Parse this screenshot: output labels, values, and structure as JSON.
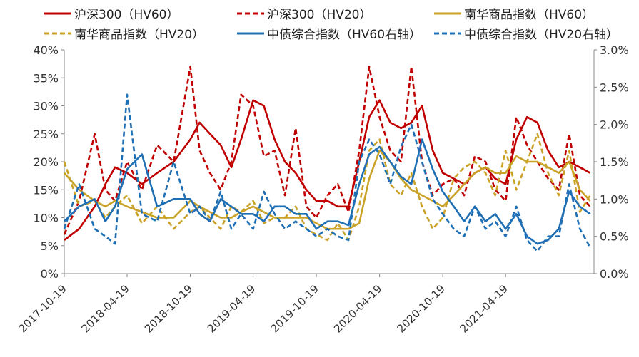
{
  "chart_data": {
    "type": "line",
    "title": "",
    "y_left": {
      "ticks": [
        "0%",
        "5%",
        "10%",
        "15%",
        "20%",
        "25%",
        "30%",
        "35%",
        "40%"
      ],
      "range": [
        0,
        40
      ]
    },
    "y_right": {
      "ticks": [
        "0.0%",
        "0.5%",
        "1.0%",
        "1.5%",
        "2.0%",
        "2.5%",
        "3.0%"
      ],
      "range": [
        0,
        3.0
      ]
    },
    "x_ticks": [
      "2017-10-19",
      "2018-04-19",
      "2018-10-19",
      "2019-04-19",
      "2019-10-19",
      "2020-04-19",
      "2020-10-19",
      "2021-04-19"
    ],
    "x_range": [
      "2017-10-19",
      "2021-12-31"
    ],
    "legend": [
      {
        "label": "沪深300（HV60）",
        "color": "#c00000",
        "dash": false
      },
      {
        "label": "沪深300（HV20）",
        "color": "#c00000",
        "dash": true
      },
      {
        "label": "南华商品指数（HV60）",
        "color": "#c9a227",
        "dash": false
      },
      {
        "label": "南华商品指数（HV20）",
        "color": "#c9a227",
        "dash": true
      },
      {
        "label": "中债综合指数（HV60右轴）",
        "color": "#1f6fb5",
        "dash": false
      },
      {
        "label": "中债综合指数（HV20右轴）",
        "color": "#1f6fb5",
        "dash": true
      }
    ],
    "series": [
      {
        "name": "沪深300（HV60）",
        "axis": "left",
        "color": "#c00000",
        "dash": false,
        "x": [
          "2017-10-19",
          "2017-12-01",
          "2018-01-15",
          "2018-02-15",
          "2018-03-15",
          "2018-04-19",
          "2018-06-01",
          "2018-07-15",
          "2018-09-01",
          "2018-10-19",
          "2018-11-15",
          "2018-12-15",
          "2019-01-15",
          "2019-02-15",
          "2019-03-15",
          "2019-04-19",
          "2019-05-20",
          "2019-06-20",
          "2019-07-20",
          "2019-08-20",
          "2019-09-20",
          "2019-10-19",
          "2019-11-20",
          "2019-12-20",
          "2020-01-20",
          "2020-02-20",
          "2020-03-20",
          "2020-04-19",
          "2020-05-20",
          "2020-06-20",
          "2020-07-20",
          "2020-08-20",
          "2020-09-20",
          "2020-10-19",
          "2020-11-20",
          "2020-12-20",
          "2021-01-20",
          "2021-02-20",
          "2021-03-20",
          "2021-04-19",
          "2021-05-20",
          "2021-06-20",
          "2021-07-20",
          "2021-08-20",
          "2021-09-20",
          "2021-10-20",
          "2021-11-20",
          "2021-12-20"
        ],
        "values": [
          6,
          8,
          12,
          16,
          19,
          18,
          16,
          18,
          20,
          24,
          27,
          25,
          23,
          19,
          24,
          31,
          30,
          24,
          20,
          18,
          15,
          13,
          13,
          12,
          12,
          20,
          28,
          31,
          27,
          26,
          27,
          30,
          22,
          18,
          17,
          16,
          18,
          19,
          17,
          16,
          24,
          28,
          27,
          22,
          19,
          20,
          19,
          18
        ]
      },
      {
        "name": "沪深300（HV20）",
        "axis": "left",
        "color": "#c00000",
        "dash": true,
        "x": [
          "2017-10-19",
          "2017-12-01",
          "2018-01-15",
          "2018-02-15",
          "2018-03-15",
          "2018-04-19",
          "2018-06-01",
          "2018-07-15",
          "2018-09-01",
          "2018-10-19",
          "2018-11-15",
          "2018-12-15",
          "2019-01-15",
          "2019-02-15",
          "2019-03-15",
          "2019-04-19",
          "2019-05-20",
          "2019-06-20",
          "2019-07-20",
          "2019-08-20",
          "2019-09-20",
          "2019-10-19",
          "2019-11-20",
          "2019-12-20",
          "2020-01-20",
          "2020-02-20",
          "2020-03-20",
          "2020-04-19",
          "2020-05-20",
          "2020-06-20",
          "2020-07-20",
          "2020-08-20",
          "2020-09-20",
          "2020-10-19",
          "2020-11-20",
          "2020-12-20",
          "2021-01-20",
          "2021-02-20",
          "2021-03-20",
          "2021-04-19",
          "2021-05-20",
          "2021-06-20",
          "2021-07-20",
          "2021-08-20",
          "2021-09-20",
          "2021-10-20",
          "2021-11-20",
          "2021-12-20"
        ],
        "values": [
          7,
          13,
          25,
          15,
          13,
          20,
          15,
          23,
          20,
          37,
          22,
          18,
          15,
          20,
          32,
          30,
          21,
          22,
          14,
          26,
          12,
          10,
          14,
          16,
          11,
          22,
          37,
          28,
          22,
          20,
          37,
          20,
          14,
          16,
          17,
          14,
          21,
          20,
          15,
          13,
          28,
          23,
          20,
          17,
          15,
          25,
          14,
          12
        ]
      },
      {
        "name": "南华商品指数（HV60）",
        "axis": "left",
        "color": "#c9a227",
        "dash": false,
        "x": [
          "2017-10-19",
          "2017-12-01",
          "2018-01-15",
          "2018-02-15",
          "2018-03-15",
          "2018-04-19",
          "2018-06-01",
          "2018-07-15",
          "2018-09-01",
          "2018-10-19",
          "2018-11-15",
          "2018-12-15",
          "2019-01-15",
          "2019-02-15",
          "2019-03-15",
          "2019-04-19",
          "2019-05-20",
          "2019-06-20",
          "2019-07-20",
          "2019-08-20",
          "2019-09-20",
          "2019-10-19",
          "2019-11-20",
          "2019-12-20",
          "2020-01-20",
          "2020-02-20",
          "2020-03-20",
          "2020-04-19",
          "2020-05-20",
          "2020-06-20",
          "2020-07-20",
          "2020-08-20",
          "2020-09-20",
          "2020-10-19",
          "2020-11-20",
          "2020-12-20",
          "2021-01-20",
          "2021-02-20",
          "2021-03-20",
          "2021-04-19",
          "2021-05-20",
          "2021-06-20",
          "2021-07-20",
          "2021-08-20",
          "2021-09-20",
          "2021-10-20",
          "2021-11-20",
          "2021-12-20"
        ],
        "values": [
          18,
          15,
          13,
          12,
          13,
          12,
          11,
          10,
          10,
          13,
          12,
          11,
          10,
          10,
          11,
          12,
          11,
          10,
          10,
          10,
          10,
          9,
          8,
          8,
          8,
          9,
          17,
          22,
          20,
          17,
          15,
          14,
          13,
          12,
          14,
          16,
          18,
          19,
          18,
          18,
          21,
          20,
          20,
          19,
          18,
          20,
          15,
          13
        ]
      },
      {
        "name": "南华商品指数（HV20）",
        "axis": "left",
        "color": "#c9a227",
        "dash": true,
        "x": [
          "2017-10-19",
          "2017-12-01",
          "2018-01-15",
          "2018-02-15",
          "2018-03-15",
          "2018-04-19",
          "2018-06-01",
          "2018-07-15",
          "2018-09-01",
          "2018-10-19",
          "2018-11-15",
          "2018-12-15",
          "2019-01-15",
          "2019-02-15",
          "2019-03-15",
          "2019-04-19",
          "2019-05-20",
          "2019-06-20",
          "2019-07-20",
          "2019-08-20",
          "2019-09-20",
          "2019-10-19",
          "2019-11-20",
          "2019-12-20",
          "2020-01-20",
          "2020-02-20",
          "2020-03-20",
          "2020-04-19",
          "2020-05-20",
          "2020-06-20",
          "2020-07-20",
          "2020-08-20",
          "2020-09-20",
          "2020-10-19",
          "2020-11-20",
          "2020-12-20",
          "2021-01-20",
          "2021-02-20",
          "2021-03-20",
          "2021-04-19",
          "2021-05-20",
          "2021-06-20",
          "2021-07-20",
          "2021-08-20",
          "2021-09-20",
          "2021-10-20",
          "2021-11-20",
          "2021-12-20"
        ],
        "values": [
          20,
          12,
          13,
          10,
          12,
          14,
          9,
          12,
          8,
          11,
          12,
          10,
          8,
          12,
          11,
          13,
          9,
          10,
          10,
          12,
          8,
          7,
          6,
          9,
          6,
          12,
          22,
          24,
          16,
          14,
          18,
          12,
          8,
          10,
          17,
          19,
          20,
          18,
          14,
          22,
          15,
          20,
          25,
          18,
          14,
          22,
          11,
          14
        ]
      },
      {
        "name": "中债综合指数（HV60右轴）",
        "axis": "right",
        "color": "#1f6fb5",
        "dash": false,
        "x": [
          "2017-10-19",
          "2017-12-01",
          "2018-01-15",
          "2018-02-15",
          "2018-03-15",
          "2018-04-19",
          "2018-06-01",
          "2018-07-15",
          "2018-09-01",
          "2018-10-19",
          "2018-11-15",
          "2018-12-15",
          "2019-01-15",
          "2019-02-15",
          "2019-03-15",
          "2019-04-19",
          "2019-05-20",
          "2019-06-20",
          "2019-07-20",
          "2019-08-20",
          "2019-09-20",
          "2019-10-19",
          "2019-11-20",
          "2019-12-20",
          "2020-01-20",
          "2020-02-20",
          "2020-03-20",
          "2020-04-19",
          "2020-05-20",
          "2020-06-20",
          "2020-07-20",
          "2020-08-20",
          "2020-09-20",
          "2020-10-19",
          "2020-11-20",
          "2020-12-20",
          "2021-01-20",
          "2021-02-20",
          "2021-03-20",
          "2021-04-19",
          "2021-05-20",
          "2021-06-20",
          "2021-07-20",
          "2021-08-20",
          "2021-09-20",
          "2021-10-20",
          "2021-11-20",
          "2021-12-20"
        ],
        "values": [
          0.7,
          0.9,
          1.0,
          0.7,
          0.9,
          1.4,
          1.6,
          0.9,
          1.0,
          1.0,
          0.8,
          0.7,
          1.0,
          0.9,
          0.8,
          0.8,
          0.7,
          0.9,
          0.9,
          0.8,
          0.8,
          0.6,
          0.7,
          0.7,
          0.65,
          1.2,
          1.6,
          1.7,
          1.5,
          1.3,
          1.2,
          1.8,
          1.4,
          1.1,
          0.9,
          0.7,
          0.9,
          0.7,
          0.8,
          0.6,
          0.8,
          0.5,
          0.4,
          0.45,
          0.6,
          1.1,
          0.9,
          0.8
        ]
      },
      {
        "name": "中债综合指数（HV20右轴）",
        "axis": "right",
        "color": "#1f6fb5",
        "dash": true,
        "x": [
          "2017-10-19",
          "2017-12-01",
          "2018-01-15",
          "2018-02-15",
          "2018-03-15",
          "2018-04-19",
          "2018-06-01",
          "2018-07-15",
          "2018-09-01",
          "2018-10-19",
          "2018-11-15",
          "2018-12-15",
          "2019-01-15",
          "2019-02-15",
          "2019-03-15",
          "2019-04-19",
          "2019-05-20",
          "2019-06-20",
          "2019-07-20",
          "2019-08-20",
          "2019-09-20",
          "2019-10-19",
          "2019-11-20",
          "2019-12-20",
          "2020-01-20",
          "2020-02-20",
          "2020-03-20",
          "2020-04-19",
          "2020-05-20",
          "2020-06-20",
          "2020-07-20",
          "2020-08-20",
          "2020-09-20",
          "2020-10-19",
          "2020-11-20",
          "2020-12-20",
          "2021-01-20",
          "2021-02-20",
          "2021-03-20",
          "2021-04-19",
          "2021-05-20",
          "2021-06-20",
          "2021-07-20",
          "2021-08-20",
          "2021-09-20",
          "2021-10-20",
          "2021-11-20",
          "2021-12-20"
        ],
        "values": [
          0.6,
          1.2,
          0.6,
          0.5,
          0.4,
          2.4,
          0.8,
          0.7,
          1.5,
          0.8,
          0.9,
          0.7,
          1.1,
          0.6,
          0.8,
          0.6,
          1.1,
          0.8,
          0.6,
          0.7,
          0.6,
          0.5,
          0.6,
          0.5,
          0.45,
          1.5,
          1.8,
          1.6,
          1.2,
          1.7,
          2.0,
          1.5,
          1.0,
          0.8,
          0.6,
          0.5,
          0.9,
          0.6,
          0.7,
          0.5,
          0.9,
          0.45,
          0.3,
          0.5,
          0.5,
          1.2,
          0.6,
          0.35
        ]
      }
    ]
  }
}
